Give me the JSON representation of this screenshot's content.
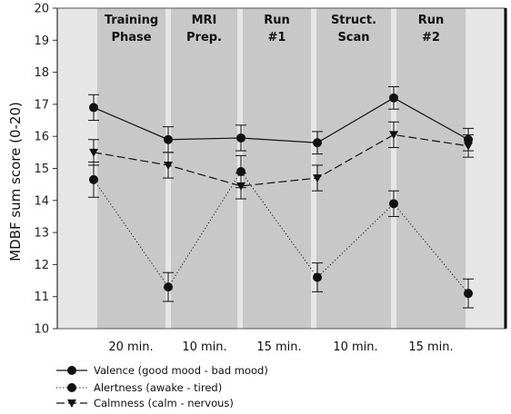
{
  "chart_data": {
    "type": "line",
    "title": "",
    "ylabel": "MDBF sum score (0-20)",
    "xlabel": "",
    "ylim": [
      10,
      20
    ],
    "y_ticks": [
      10,
      11,
      12,
      13,
      14,
      15,
      16,
      17,
      18,
      19,
      20
    ],
    "phases": [
      {
        "line1": "Training",
        "line2": "Phase",
        "duration": "20 min."
      },
      {
        "line1": "MRI",
        "line2": "Prep.",
        "duration": "10 min."
      },
      {
        "line1": "Run",
        "line2": "#1",
        "duration": "15 min."
      },
      {
        "line1": "Struct.",
        "line2": "Scan",
        "duration": "10 min."
      },
      {
        "line1": "Run",
        "line2": "#2",
        "duration": "15 min."
      }
    ],
    "series": [
      {
        "name": "Valence (good mood - bad mood)",
        "marker": "circle",
        "dash": "solid",
        "values": [
          16.9,
          15.9,
          15.95,
          15.8,
          17.2,
          15.9
        ],
        "errors": [
          0.4,
          0.4,
          0.4,
          0.35,
          0.35,
          0.35
        ]
      },
      {
        "name": "Alertness (awake - tired)",
        "marker": "circle",
        "dash": "dotted",
        "values": [
          14.65,
          11.3,
          14.9,
          11.6,
          13.9,
          11.1
        ],
        "errors": [
          0.55,
          0.45,
          0.5,
          0.45,
          0.4,
          0.45
        ]
      },
      {
        "name": "Calmness (calm - nervous)",
        "marker": "triangle-down",
        "dash": "dashed",
        "values": [
          15.5,
          15.1,
          14.45,
          14.7,
          16.05,
          15.7
        ],
        "errors": [
          0.4,
          0.4,
          0.4,
          0.4,
          0.4,
          0.35
        ]
      }
    ],
    "grid": false,
    "legend_position": "bottom-left"
  },
  "colors": {
    "shade_dark": "#c8c8c8",
    "shade_light": "#e6e6e6",
    "line": "#111111"
  }
}
